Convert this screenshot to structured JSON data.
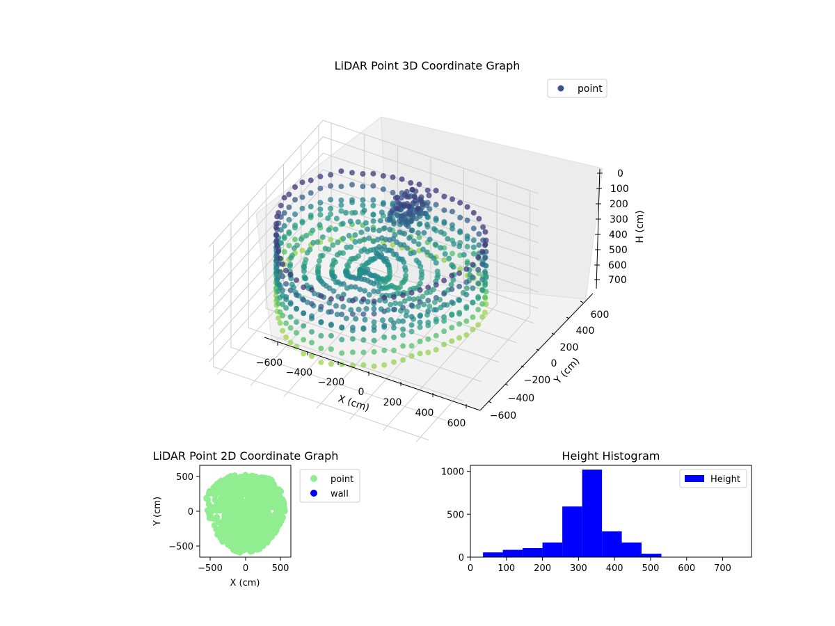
{
  "chart_data": [
    {
      "type": "scatter",
      "projection": "3d",
      "title": "LiDAR Point 3D Coordinate Graph",
      "xlabel": "X (cm)",
      "ylabel": "Y (cm)",
      "zlabel": "H (cm)",
      "xlim": [
        -650,
        650
      ],
      "ylim": [
        -650,
        650
      ],
      "zlim": [
        0,
        760
      ],
      "z_inverted": true,
      "x_ticks": [
        -600,
        -400,
        -200,
        0,
        200,
        400,
        600
      ],
      "y_ticks": [
        -600,
        -400,
        -200,
        0,
        200,
        400,
        600
      ],
      "z_ticks": [
        0,
        100,
        200,
        300,
        400,
        500,
        600,
        700
      ],
      "x_tick_labels": [
        "−600",
        "−400",
        "−200",
        "0",
        "200",
        "400",
        "600"
      ],
      "y_tick_labels": [
        "−600",
        "−400",
        "−200",
        "0",
        "200",
        "400",
        "600"
      ],
      "z_tick_labels": [
        "0",
        "100",
        "200",
        "300",
        "400",
        "500",
        "600",
        "700"
      ],
      "legend": {
        "entries": [
          "point"
        ],
        "placement": "top-right",
        "color": "#3b528b"
      },
      "colormap": "viridis",
      "point_summary": "radial sweep from center, wall ring radius ~600 cm, heights ~50-520 cm, dense cluster near X -100..50, Y 300..500, H 100..250"
    },
    {
      "type": "scatter",
      "title": "LiDAR Point 2D Coordinate Graph",
      "xlabel": "X (cm)",
      "ylabel": "Y (cm)",
      "xlim": [
        -650,
        650
      ],
      "ylim": [
        -650,
        650
      ],
      "x_ticks": [
        -500,
        0,
        500
      ],
      "y_ticks": [
        -500,
        0,
        500
      ],
      "x_tick_labels": [
        "−500",
        "0",
        "500"
      ],
      "y_tick_labels": [
        "−500",
        "0",
        "500"
      ],
      "series": [
        {
          "name": "point",
          "color": "#90ee90"
        },
        {
          "name": "wall",
          "color": "#0000ff"
        }
      ],
      "legend": {
        "entries": [
          "point",
          "wall"
        ],
        "placement": "outside-right"
      }
    },
    {
      "type": "bar",
      "title": "Height Histogram",
      "xlabel": "",
      "ylabel": "",
      "xlim": [
        0,
        780
      ],
      "ylim": [
        0,
        1070
      ],
      "bin_edges": [
        35,
        90,
        145,
        200,
        255,
        310,
        365,
        420,
        475,
        530,
        585,
        640,
        695,
        750
      ],
      "values": [
        55,
        85,
        105,
        170,
        590,
        1020,
        300,
        170,
        40,
        0,
        0,
        0,
        0
      ],
      "color": "#0000ff",
      "x_ticks": [
        0,
        100,
        200,
        300,
        400,
        500,
        600,
        700
      ],
      "y_ticks": [
        0,
        500,
        1000
      ],
      "x_tick_labels": [
        "0",
        "100",
        "200",
        "300",
        "400",
        "500",
        "600",
        "700"
      ],
      "y_tick_labels": [
        "0",
        "500",
        "1000"
      ],
      "legend": {
        "entries": [
          "Height"
        ],
        "placement": "top-right"
      }
    }
  ]
}
